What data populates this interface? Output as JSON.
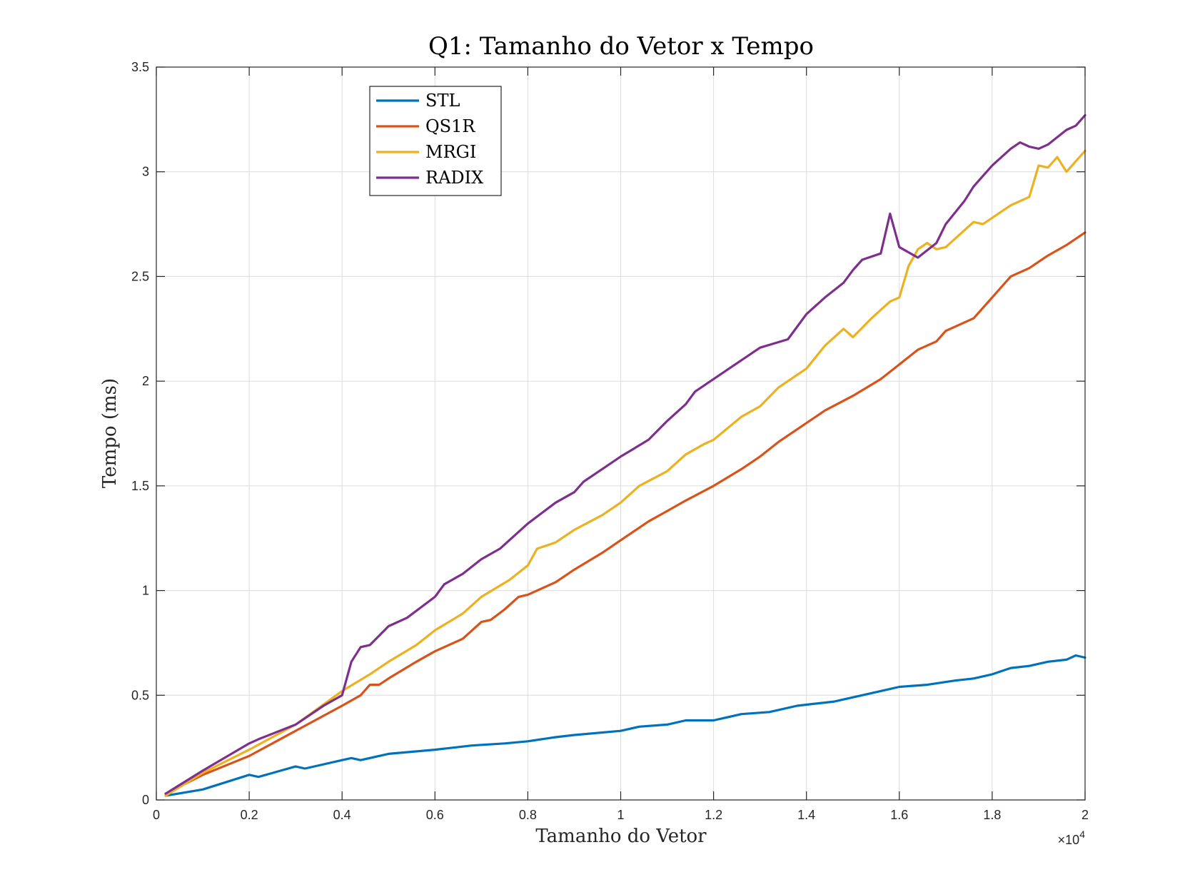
{
  "chart_data": {
    "type": "line",
    "title": "Q1: Tamanho do Vetor x Tempo",
    "xlabel": "Tamanho do Vetor",
    "ylabel": "Tempo (ms)",
    "x_exponent": "×10",
    "x_exponent_power": "4",
    "xlim": [
      0,
      20000
    ],
    "ylim": [
      0,
      3.5
    ],
    "grid": true,
    "legend_position": "top-left",
    "x_ticks": [
      0,
      2000,
      4000,
      6000,
      8000,
      10000,
      12000,
      14000,
      16000,
      18000,
      20000
    ],
    "x_tick_labels": [
      "0",
      "0.2",
      "0.4",
      "0.6",
      "0.8",
      "1",
      "1.2",
      "1.4",
      "1.6",
      "1.8",
      "2"
    ],
    "y_ticks": [
      0,
      0.5,
      1,
      1.5,
      2,
      2.5,
      3,
      3.5
    ],
    "y_tick_labels": [
      "0",
      "0.5",
      "1",
      "1.5",
      "2",
      "2.5",
      "3",
      "3.5"
    ],
    "series": [
      {
        "name": "STL",
        "color": "#0072BD",
        "points": [
          [
            200,
            0.02
          ],
          [
            1000,
            0.05
          ],
          [
            2000,
            0.12
          ],
          [
            2200,
            0.11
          ],
          [
            3000,
            0.16
          ],
          [
            3200,
            0.15
          ],
          [
            4000,
            0.19
          ],
          [
            4200,
            0.2
          ],
          [
            4400,
            0.19
          ],
          [
            5000,
            0.22
          ],
          [
            5500,
            0.23
          ],
          [
            6000,
            0.24
          ],
          [
            6800,
            0.26
          ],
          [
            7500,
            0.27
          ],
          [
            8000,
            0.28
          ],
          [
            8600,
            0.3
          ],
          [
            9000,
            0.31
          ],
          [
            10000,
            0.33
          ],
          [
            10400,
            0.35
          ],
          [
            11000,
            0.36
          ],
          [
            11400,
            0.38
          ],
          [
            12000,
            0.38
          ],
          [
            12600,
            0.41
          ],
          [
            13200,
            0.42
          ],
          [
            13800,
            0.45
          ],
          [
            14200,
            0.46
          ],
          [
            14600,
            0.47
          ],
          [
            15000,
            0.49
          ],
          [
            15600,
            0.52
          ],
          [
            16000,
            0.54
          ],
          [
            16600,
            0.55
          ],
          [
            17200,
            0.57
          ],
          [
            17600,
            0.58
          ],
          [
            18000,
            0.6
          ],
          [
            18400,
            0.63
          ],
          [
            18800,
            0.64
          ],
          [
            19200,
            0.66
          ],
          [
            19600,
            0.67
          ],
          [
            19800,
            0.69
          ],
          [
            20000,
            0.68
          ]
        ]
      },
      {
        "name": "QS1R",
        "color": "#D95319",
        "points": [
          [
            200,
            0.03
          ],
          [
            1000,
            0.12
          ],
          [
            2000,
            0.21
          ],
          [
            3000,
            0.33
          ],
          [
            4000,
            0.45
          ],
          [
            4400,
            0.5
          ],
          [
            4600,
            0.55
          ],
          [
            4800,
            0.55
          ],
          [
            5000,
            0.58
          ],
          [
            5600,
            0.66
          ],
          [
            6000,
            0.71
          ],
          [
            6600,
            0.77
          ],
          [
            7000,
            0.85
          ],
          [
            7200,
            0.86
          ],
          [
            7500,
            0.91
          ],
          [
            7800,
            0.97
          ],
          [
            8000,
            0.98
          ],
          [
            8600,
            1.04
          ],
          [
            9000,
            1.1
          ],
          [
            9600,
            1.18
          ],
          [
            10000,
            1.24
          ],
          [
            10600,
            1.33
          ],
          [
            11000,
            1.38
          ],
          [
            11400,
            1.43
          ],
          [
            12000,
            1.5
          ],
          [
            12600,
            1.58
          ],
          [
            13000,
            1.64
          ],
          [
            13400,
            1.71
          ],
          [
            14000,
            1.8
          ],
          [
            14400,
            1.86
          ],
          [
            15000,
            1.93
          ],
          [
            15600,
            2.01
          ],
          [
            16000,
            2.08
          ],
          [
            16400,
            2.15
          ],
          [
            16800,
            2.19
          ],
          [
            17000,
            2.24
          ],
          [
            17600,
            2.3
          ],
          [
            18000,
            2.4
          ],
          [
            18400,
            2.5
          ],
          [
            18800,
            2.54
          ],
          [
            19200,
            2.6
          ],
          [
            19600,
            2.65
          ],
          [
            20000,
            2.71
          ]
        ]
      },
      {
        "name": "MRGI",
        "color": "#EDB120",
        "points": [
          [
            200,
            0.02
          ],
          [
            1000,
            0.13
          ],
          [
            2000,
            0.24
          ],
          [
            3000,
            0.36
          ],
          [
            4000,
            0.52
          ],
          [
            4600,
            0.6
          ],
          [
            5000,
            0.66
          ],
          [
            5600,
            0.74
          ],
          [
            6000,
            0.81
          ],
          [
            6600,
            0.89
          ],
          [
            7000,
            0.97
          ],
          [
            7600,
            1.05
          ],
          [
            8000,
            1.12
          ],
          [
            8200,
            1.2
          ],
          [
            8600,
            1.23
          ],
          [
            9000,
            1.29
          ],
          [
            9600,
            1.36
          ],
          [
            10000,
            1.42
          ],
          [
            10400,
            1.5
          ],
          [
            11000,
            1.57
          ],
          [
            11400,
            1.65
          ],
          [
            11800,
            1.7
          ],
          [
            12000,
            1.72
          ],
          [
            12600,
            1.83
          ],
          [
            13000,
            1.88
          ],
          [
            13400,
            1.97
          ],
          [
            13800,
            2.03
          ],
          [
            14000,
            2.06
          ],
          [
            14400,
            2.17
          ],
          [
            14800,
            2.25
          ],
          [
            15000,
            2.21
          ],
          [
            15400,
            2.3
          ],
          [
            15800,
            2.38
          ],
          [
            16000,
            2.4
          ],
          [
            16200,
            2.55
          ],
          [
            16400,
            2.63
          ],
          [
            16600,
            2.66
          ],
          [
            16800,
            2.63
          ],
          [
            17000,
            2.64
          ],
          [
            17600,
            2.76
          ],
          [
            17800,
            2.75
          ],
          [
            18000,
            2.78
          ],
          [
            18400,
            2.84
          ],
          [
            18800,
            2.88
          ],
          [
            19000,
            3.03
          ],
          [
            19200,
            3.02
          ],
          [
            19400,
            3.07
          ],
          [
            19600,
            3.0
          ],
          [
            19800,
            3.05
          ],
          [
            20000,
            3.1
          ]
        ]
      },
      {
        "name": "RADIX",
        "color": "#7E2F8E",
        "points": [
          [
            200,
            0.03
          ],
          [
            1000,
            0.14
          ],
          [
            2000,
            0.27
          ],
          [
            2200,
            0.29
          ],
          [
            3000,
            0.36
          ],
          [
            3600,
            0.45
          ],
          [
            4000,
            0.5
          ],
          [
            4200,
            0.66
          ],
          [
            4400,
            0.73
          ],
          [
            4600,
            0.74
          ],
          [
            5000,
            0.83
          ],
          [
            5400,
            0.87
          ],
          [
            6000,
            0.97
          ],
          [
            6200,
            1.03
          ],
          [
            6600,
            1.08
          ],
          [
            7000,
            1.15
          ],
          [
            7400,
            1.2
          ],
          [
            8000,
            1.32
          ],
          [
            8600,
            1.42
          ],
          [
            9000,
            1.47
          ],
          [
            9200,
            1.52
          ],
          [
            9600,
            1.58
          ],
          [
            10000,
            1.64
          ],
          [
            10600,
            1.72
          ],
          [
            11000,
            1.81
          ],
          [
            11400,
            1.89
          ],
          [
            11600,
            1.95
          ],
          [
            12000,
            2.01
          ],
          [
            12600,
            2.1
          ],
          [
            13000,
            2.16
          ],
          [
            13600,
            2.2
          ],
          [
            14000,
            2.32
          ],
          [
            14400,
            2.4
          ],
          [
            14800,
            2.47
          ],
          [
            15000,
            2.53
          ],
          [
            15200,
            2.58
          ],
          [
            15600,
            2.61
          ],
          [
            15800,
            2.8
          ],
          [
            16000,
            2.64
          ],
          [
            16400,
            2.59
          ],
          [
            16800,
            2.66
          ],
          [
            17000,
            2.75
          ],
          [
            17400,
            2.86
          ],
          [
            17600,
            2.93
          ],
          [
            18000,
            3.03
          ],
          [
            18400,
            3.11
          ],
          [
            18600,
            3.14
          ],
          [
            18800,
            3.12
          ],
          [
            19000,
            3.11
          ],
          [
            19200,
            3.13
          ],
          [
            19600,
            3.2
          ],
          [
            19800,
            3.22
          ],
          [
            20000,
            3.27
          ]
        ]
      }
    ]
  }
}
